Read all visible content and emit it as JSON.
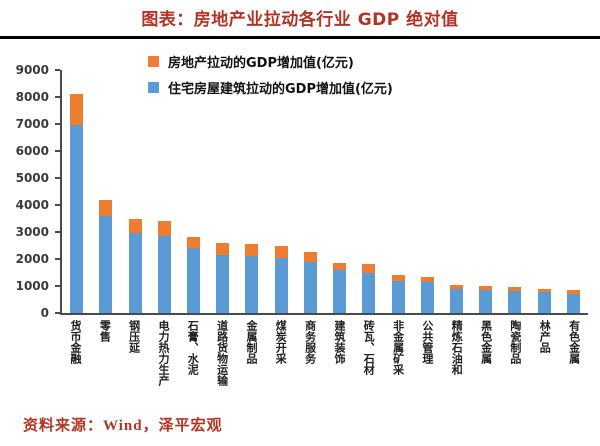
{
  "title": "图表：房地产业拉动各行业 GDP 绝对值",
  "source_note": "资料来源：Wind，泽平宏观",
  "legend": {
    "items": [
      {
        "label": "房地产拉动的GDP增加值(亿元)",
        "color": "#ED7D31"
      },
      {
        "label": "住宅房屋建筑拉动的GDP增加值(亿元)",
        "color": "#5B9BD5"
      }
    ]
  },
  "chart_data": {
    "type": "bar",
    "stacked": true,
    "title": "图表：房地产业拉动各行业 GDP 绝对值",
    "xlabel": "",
    "ylabel": "",
    "ylim": [
      0,
      9000
    ],
    "yticks": [
      0,
      1000,
      2000,
      3000,
      4000,
      5000,
      6000,
      7000,
      8000,
      9000
    ],
    "grid": false,
    "legend_position": "top",
    "categories": [
      "货币金融",
      "零售",
      "钢压延",
      "电力热力生产",
      "石膏、水泥",
      "道路货物运输",
      "金属制品",
      "煤炭开采",
      "商务服务",
      "建筑装饰",
      "砖瓦、石材",
      "非金属矿采",
      "公共管理",
      "精炼石油和",
      "黑色金属",
      "陶瓷制品",
      "林产品",
      "有色金属"
    ],
    "series": [
      {
        "name": "住宅房屋建筑拉动的GDP增加值(亿元)",
        "color": "#5B9BD5",
        "values": [
          6950,
          3600,
          2950,
          2850,
          2400,
          2150,
          2100,
          2050,
          1900,
          1600,
          1500,
          1200,
          1150,
          900,
          850,
          800,
          780,
          720
        ]
      },
      {
        "name": "房地产拉动的GDP增加值(亿元)",
        "color": "#ED7D31",
        "values": [
          1150,
          600,
          550,
          550,
          400,
          450,
          450,
          450,
          350,
          250,
          300,
          200,
          200,
          150,
          150,
          150,
          120,
          130
        ]
      }
    ]
  },
  "colors": {
    "title_red": "#B13426",
    "axis_text": "#3a3a3a",
    "bar_blue": "#5B9BD5",
    "bar_orange": "#ED7D31",
    "divider": "#000000"
  }
}
